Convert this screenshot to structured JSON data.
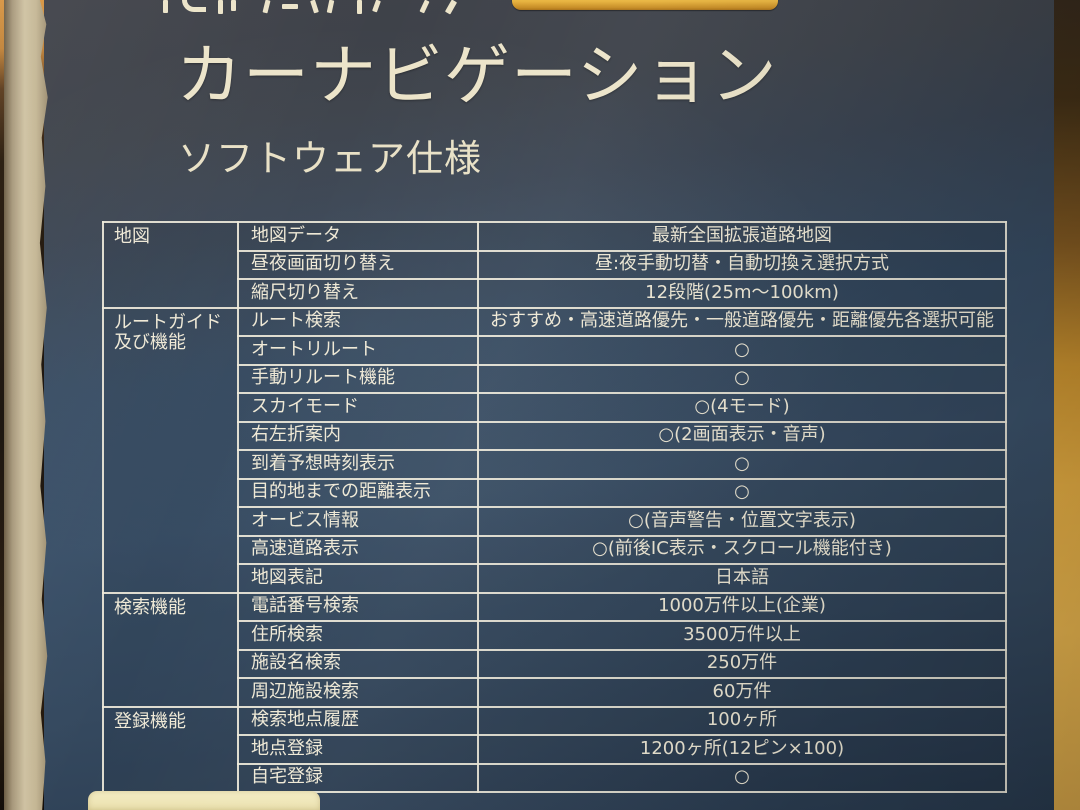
{
  "header": {
    "title": "カーナビゲーション",
    "subtitle": "ソフトウェア仕様"
  },
  "table": {
    "sections": [
      {
        "category": "地図",
        "rows": [
          {
            "item": "地図データ",
            "value": "最新全国拡張道路地図"
          },
          {
            "item": "昼夜画面切り替え",
            "value": "昼:夜手動切替・自動切換え選択方式"
          },
          {
            "item": "縮尺切り替え",
            "value": "12段階(25m〜100km)"
          }
        ]
      },
      {
        "category": "ルートガイド及び機能",
        "rows": [
          {
            "item": "ルート検索",
            "value": "おすすめ・高速道路優先・一般道路優先・距離優先各選択可能"
          },
          {
            "item": "オートリルート",
            "value": "○"
          },
          {
            "item": "手動リルート機能",
            "value": "○"
          },
          {
            "item": "スカイモード",
            "value": "○(4モード)"
          },
          {
            "item": "右左折案内",
            "value": "○(2画面表示・音声)"
          },
          {
            "item": "到着予想時刻表示",
            "value": "○"
          },
          {
            "item": "目的地までの距離表示",
            "value": "○"
          },
          {
            "item": "オービス情報",
            "value": "○(音声警告・位置文字表示)"
          },
          {
            "item": "高速道路表示",
            "value": "○(前後IC表示・スクロール機能付き)"
          },
          {
            "item": "地図表記",
            "value": "日本語"
          }
        ]
      },
      {
        "category": "検索機能",
        "rows": [
          {
            "item": "電話番号検索",
            "value": "1000万件以上(企業)"
          },
          {
            "item": "住所検索",
            "value": "3500万件以上"
          },
          {
            "item": "施設名検索",
            "value": "250万件"
          },
          {
            "item": "周辺施設検索",
            "value": "60万件"
          }
        ]
      },
      {
        "category": "登録機能",
        "rows": [
          {
            "item": "検索地点履歴",
            "value": "100ヶ所"
          },
          {
            "item": "地点登録",
            "value": "1200ヶ所(12ピン×100)"
          },
          {
            "item": "自宅登録",
            "value": "○"
          }
        ]
      }
    ]
  },
  "colors": {
    "box_blue": "#36495f",
    "table_line": "#eee9da",
    "text_cream": "#efe9d6",
    "accent_gold": "#e0ab35",
    "background_tan": "#d2953f"
  }
}
